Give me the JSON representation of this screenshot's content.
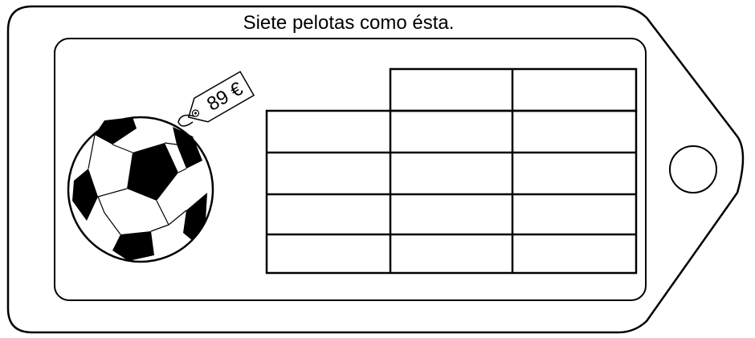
{
  "title": "Siete pelotas como ésta.",
  "price_tag": "89 €"
}
